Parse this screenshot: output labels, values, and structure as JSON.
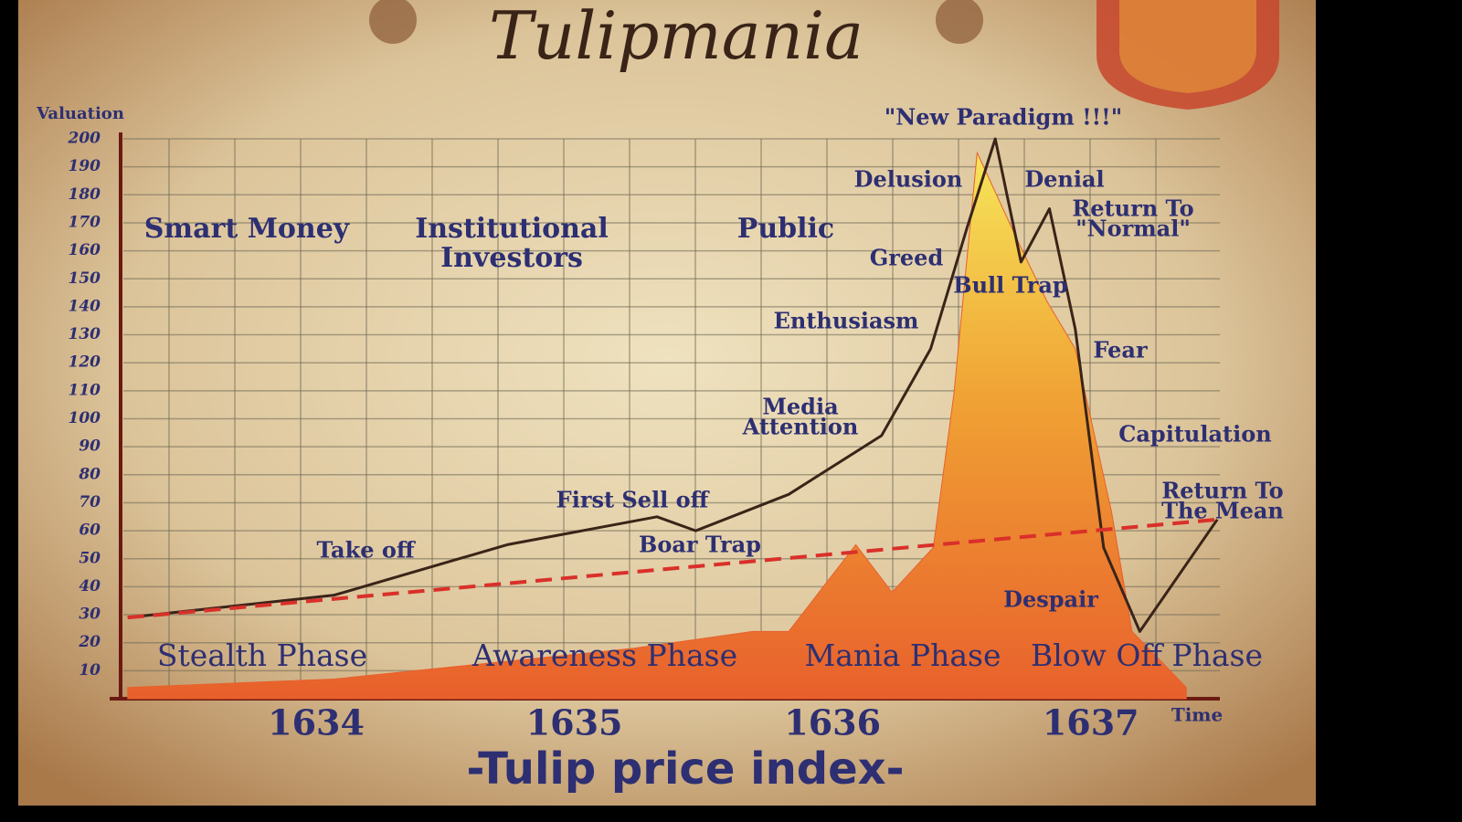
{
  "chart_data": {
    "type": "line",
    "title": "Tulipmania",
    "subtitle": "-Tulip price index-",
    "y_label": "Valuation",
    "x_label": "Time",
    "xlim": [
      1633.2,
      1637.5
    ],
    "xticks": [
      1634,
      1635,
      1636,
      1637
    ],
    "ylim": [
      0,
      200
    ],
    "yticks": [
      10,
      20,
      30,
      40,
      50,
      60,
      70,
      80,
      90,
      100,
      110,
      120,
      130,
      140,
      150,
      160,
      170,
      180,
      190,
      200
    ],
    "grid": true,
    "series": [
      {
        "kind": "area",
        "color": "#e8602c",
        "x": [
          1633.27,
          1634.07,
          1635.23,
          1635.69,
          1635.83,
          1636.09,
          1636.23,
          1636.39,
          1636.47,
          1636.56,
          1636.73,
          1636.83,
          1636.94,
          1637.08,
          1637.16,
          1637.37
        ],
        "values": [
          4,
          7,
          18,
          24,
          24,
          55,
          38,
          54,
          109,
          195,
          161,
          142,
          125,
          67,
          24,
          4
        ]
      },
      {
        "kind": "line",
        "color": "#3a2418",
        "x": [
          1633.27,
          1634.07,
          1634.74,
          1635.32,
          1635.47,
          1635.83,
          1636.19,
          1636.38,
          1636.52,
          1636.63,
          1636.73,
          1636.84,
          1636.94,
          1637.05,
          1637.19,
          1637.49
        ],
        "values": [
          29,
          37,
          55,
          65,
          60,
          73,
          94,
          125,
          168,
          200,
          156,
          175,
          132,
          54,
          24,
          64
        ]
      },
      {
        "kind": "dashed",
        "color": "#d9302a",
        "x": [
          1633.27,
          1637.49
        ],
        "values": [
          29,
          64
        ]
      }
    ],
    "groups": [
      "Smart Money",
      [
        "Institutional",
        "Investors"
      ],
      "Public"
    ],
    "phases": [
      "Stealth Phase",
      "Awareness Phase",
      "Mania Phase",
      "Blow Off Phase"
    ],
    "annotations": [
      "\"New Paradigm !!!\"",
      "Delusion",
      "Denial",
      [
        "Return To",
        "\"Normal\""
      ],
      "Greed",
      "Bull Trap",
      "Enthusiasm",
      "Fear",
      [
        "Media",
        "Attention"
      ],
      "Capitulation",
      "First Sell off",
      [
        "Return To",
        "The Mean"
      ],
      "Take off",
      "Boar Trap",
      "Despair"
    ]
  }
}
